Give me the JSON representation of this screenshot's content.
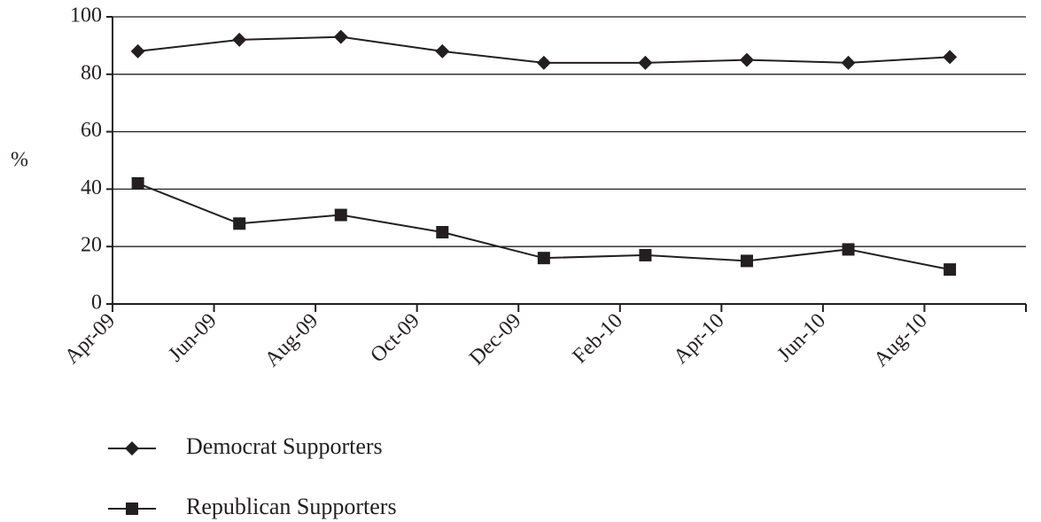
{
  "chart_data": {
    "type": "line",
    "ylabel": "%",
    "ylim": [
      0,
      100
    ],
    "yticks": [
      0,
      20,
      40,
      60,
      80,
      100
    ],
    "grid": "horizontal",
    "legend_position": "bottom-left",
    "tick_labels": [
      "Apr-09",
      "Jun-09",
      "Aug-09",
      "Oct-09",
      "Dec-09",
      "Feb-10",
      "Apr-10",
      "Jun-10",
      "Aug-10"
    ],
    "x": [
      "Apr-09",
      "Jun-09",
      "Aug-09",
      "Oct-09",
      "Dec-09",
      "Feb-10",
      "Apr-10",
      "Jun-10",
      "Aug-10"
    ],
    "series": [
      {
        "name": "Democrat Supporters",
        "marker": "diamond",
        "color": "#231f20",
        "values": [
          88,
          92,
          93,
          88,
          84,
          84,
          85,
          84,
          86
        ]
      },
      {
        "name": "Republican Supporters",
        "marker": "square",
        "color": "#231f20",
        "values": [
          42,
          28,
          31,
          25,
          16,
          17,
          15,
          19,
          12
        ]
      }
    ]
  }
}
